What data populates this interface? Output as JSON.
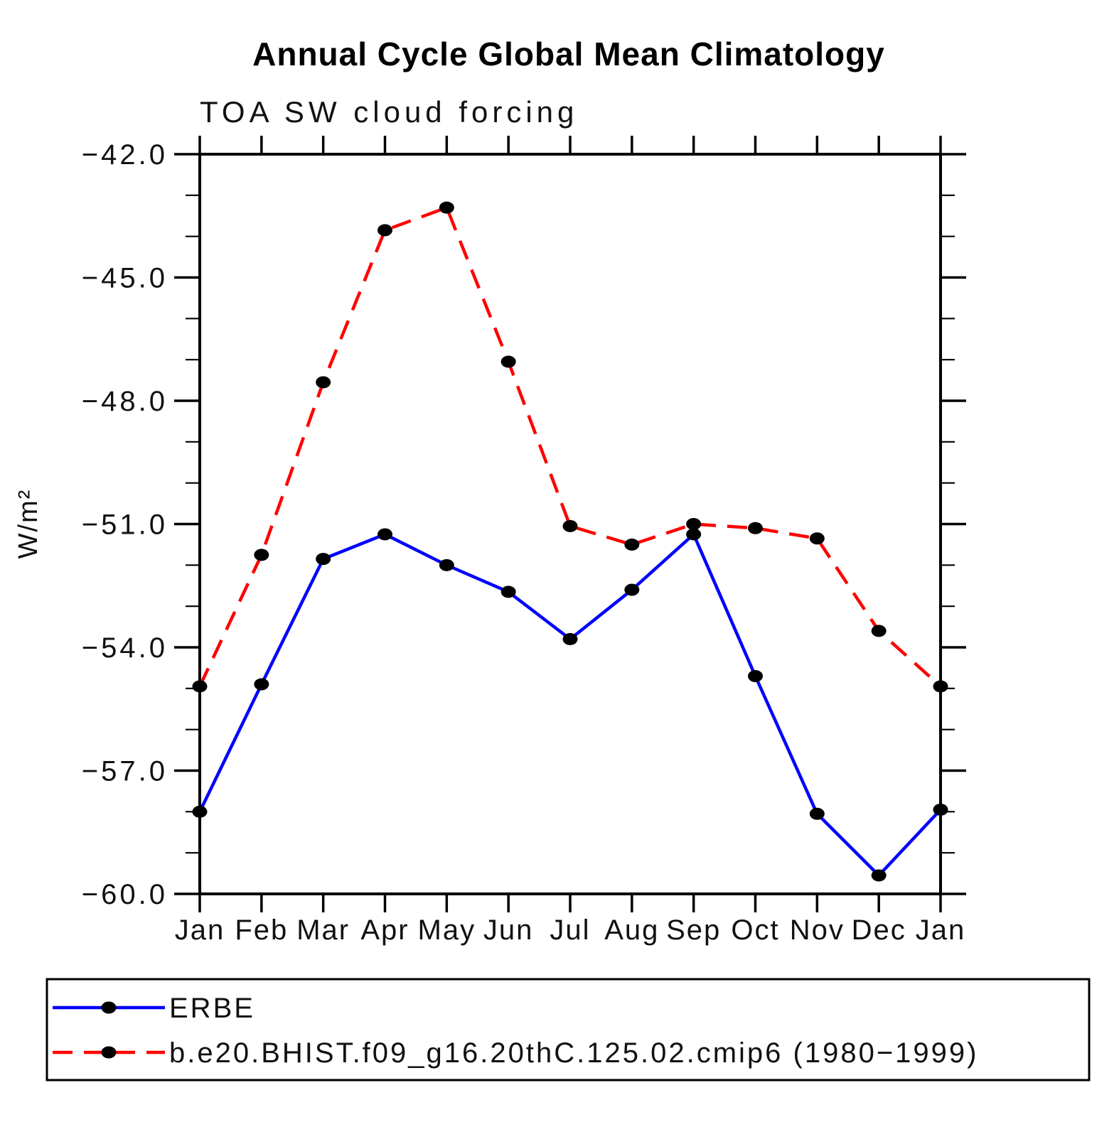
{
  "page": {
    "title": "Annual Cycle Global Mean Climatology",
    "subtitle": "TOA SW cloud forcing"
  },
  "chart_data": {
    "type": "line",
    "title": "Annual Cycle Global Mean Climatology",
    "subtitle": "TOA SW cloud forcing",
    "xlabel": "",
    "ylabel": "W/m²",
    "x_tick_labels": [
      "Jan",
      "Feb",
      "Mar",
      "Apr",
      "May",
      "Jun",
      "Jul",
      "Aug",
      "Sep",
      "Oct",
      "Nov",
      "Dec",
      "Jan"
    ],
    "y_ticks": [
      -42.0,
      -45.0,
      -48.0,
      -51.0,
      -54.0,
      -57.0,
      -60.0
    ],
    "y_tick_labels": [
      "−42.0",
      "−45.0",
      "−48.0",
      "−51.0",
      "−54.0",
      "−57.0",
      "−60.0"
    ],
    "ylim": [
      -60.0,
      -42.0
    ],
    "y_minor_step": 1.0,
    "grid": false,
    "legend_position": "bottom",
    "axis_color": "#000000",
    "marker_shape": "filled-ellipse",
    "series": [
      {
        "name": "ERBE",
        "color": "#0000ff",
        "style": "solid",
        "marker_color": "#000000",
        "values": [
          -58.0,
          -54.9,
          -51.85,
          -51.25,
          -52.0,
          -52.65,
          -53.8,
          -52.6,
          -51.25,
          -54.7,
          -58.05,
          -59.55,
          -57.95
        ]
      },
      {
        "name": "b.e20.BHIST.f09_g16.20thC.125.02.cmip6 (1980−1999)",
        "color": "#ff0000",
        "style": "dashed",
        "marker_color": "#000000",
        "values": [
          -54.95,
          -51.75,
          -47.55,
          -43.85,
          -43.3,
          -47.05,
          -51.05,
          -51.5,
          -51.0,
          -51.1,
          -51.35,
          -53.6,
          -54.95
        ]
      }
    ]
  }
}
